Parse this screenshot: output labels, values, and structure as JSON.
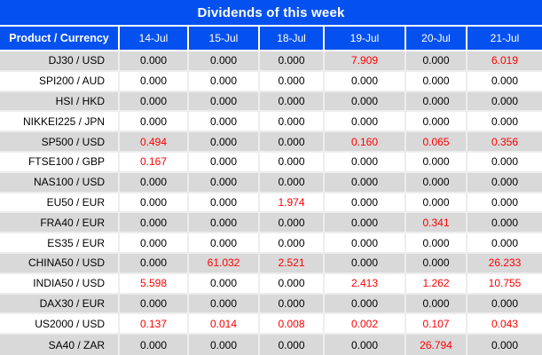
{
  "title": "Dividends of this week",
  "colors": {
    "header_blue": "#0551f0",
    "row_gray": "#d9d9d9",
    "row_white": "#ffffff",
    "value_black": "#000000",
    "value_red": "#fe0000",
    "header_text": "#ffffff"
  },
  "table": {
    "columns": [
      "Product / Currency",
      "14-Jul",
      "15-Jul",
      "18-Jul",
      "19-Jul",
      "20-Jul",
      "21-Jul"
    ],
    "rows": [
      {
        "product": "DJ30 / USD",
        "values": [
          "0.000",
          "0.000",
          "0.000",
          "7.909",
          "0.000",
          "6.019"
        ],
        "red": [
          false,
          false,
          false,
          true,
          false,
          true
        ]
      },
      {
        "product": "SPI200 / AUD",
        "values": [
          "0.000",
          "0.000",
          "0.000",
          "0.000",
          "0.000",
          "0.000"
        ],
        "red": [
          false,
          false,
          false,
          false,
          false,
          false
        ]
      },
      {
        "product": "HSI / HKD",
        "values": [
          "0.000",
          "0.000",
          "0.000",
          "0.000",
          "0.000",
          "0.000"
        ],
        "red": [
          false,
          false,
          false,
          false,
          false,
          false
        ]
      },
      {
        "product": "NIKKEI225 / JPN",
        "values": [
          "0.000",
          "0.000",
          "0.000",
          "0.000",
          "0.000",
          "0.000"
        ],
        "red": [
          false,
          false,
          false,
          false,
          false,
          false
        ]
      },
      {
        "product": "SP500 / USD",
        "values": [
          "0.494",
          "0.000",
          "0.000",
          "0.160",
          "0.065",
          "0.356"
        ],
        "red": [
          true,
          false,
          false,
          true,
          true,
          true
        ]
      },
      {
        "product": "FTSE100 / GBP",
        "values": [
          "0.167",
          "0.000",
          "0.000",
          "0.000",
          "0.000",
          "0.000"
        ],
        "red": [
          true,
          false,
          false,
          false,
          false,
          false
        ]
      },
      {
        "product": "NAS100 / USD",
        "values": [
          "0.000",
          "0.000",
          "0.000",
          "0.000",
          "0.000",
          "0.000"
        ],
        "red": [
          false,
          false,
          false,
          false,
          false,
          false
        ]
      },
      {
        "product": "EU50 / EUR",
        "values": [
          "0.000",
          "0.000",
          "1.974",
          "0.000",
          "0.000",
          "0.000"
        ],
        "red": [
          false,
          false,
          true,
          false,
          false,
          false
        ]
      },
      {
        "product": "FRA40 / EUR",
        "values": [
          "0.000",
          "0.000",
          "0.000",
          "0.000",
          "0.341",
          "0.000"
        ],
        "red": [
          false,
          false,
          false,
          false,
          true,
          false
        ]
      },
      {
        "product": "ES35 / EUR",
        "values": [
          "0.000",
          "0.000",
          "0.000",
          "0.000",
          "0.000",
          "0.000"
        ],
        "red": [
          false,
          false,
          false,
          false,
          false,
          false
        ]
      },
      {
        "product": "CHINA50 / USD",
        "values": [
          "0.000",
          "61.032",
          "2.521",
          "0.000",
          "0.000",
          "26.233"
        ],
        "red": [
          false,
          true,
          true,
          false,
          false,
          true
        ]
      },
      {
        "product": "INDIA50 / USD",
        "values": [
          "5.598",
          "0.000",
          "0.000",
          "2.413",
          "1.262",
          "10.755"
        ],
        "red": [
          true,
          false,
          false,
          true,
          true,
          true
        ]
      },
      {
        "product": "DAX30 / EUR",
        "values": [
          "0.000",
          "0.000",
          "0.000",
          "0.000",
          "0.000",
          "0.000"
        ],
        "red": [
          false,
          false,
          false,
          false,
          false,
          false
        ]
      },
      {
        "product": "US2000 / USD",
        "values": [
          "0.137",
          "0.014",
          "0.008",
          "0.002",
          "0.107",
          "0.043"
        ],
        "red": [
          true,
          true,
          true,
          true,
          true,
          true
        ]
      },
      {
        "product": "SA40 / ZAR",
        "values": [
          "0.000",
          "0.000",
          "0.000",
          "0.000",
          "26.794",
          "0.000"
        ],
        "red": [
          false,
          false,
          false,
          false,
          true,
          false
        ]
      }
    ]
  }
}
